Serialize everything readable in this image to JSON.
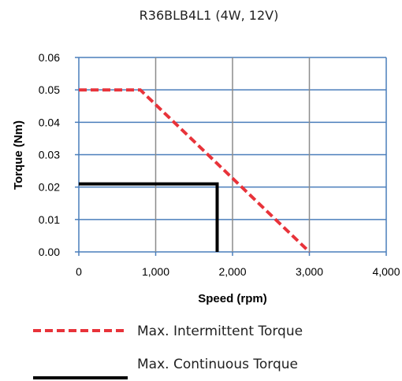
{
  "chart_data": {
    "type": "line",
    "title": "R36BLB4L1 (4W, 12V)",
    "xlabel": "Speed (rpm)",
    "ylabel": "Torque (Nm)",
    "xlim": [
      0,
      4000
    ],
    "ylim": [
      0,
      0.06
    ],
    "x_ticks": [
      "0",
      "1,000",
      "2,000",
      "3,000",
      "4,000"
    ],
    "y_ticks": [
      "0.00",
      "0.01",
      "0.02",
      "0.03",
      "0.04",
      "0.05",
      "0.06"
    ],
    "x_tick_values": [
      0,
      1000,
      2000,
      3000,
      4000
    ],
    "y_tick_values": [
      0,
      0.01,
      0.02,
      0.03,
      0.04,
      0.05,
      0.06
    ],
    "grid": true,
    "legend_position": "bottom",
    "series": [
      {
        "name": "Max. Intermittent Torque",
        "style": "dashed",
        "color": "#e8333a",
        "points": [
          [
            0,
            0.05
          ],
          [
            800,
            0.05
          ],
          [
            3000,
            0.0
          ]
        ]
      },
      {
        "name": "Max. Continuous  Torque",
        "style": "solid",
        "color": "#000000",
        "points": [
          [
            0,
            0.021
          ],
          [
            1800,
            0.021
          ],
          [
            1800,
            0.0
          ]
        ]
      }
    ],
    "colors": {
      "grid_major": "#4a7ebb",
      "grid_minor": "#8c8c8c",
      "axis": "#4a7ebb"
    }
  }
}
